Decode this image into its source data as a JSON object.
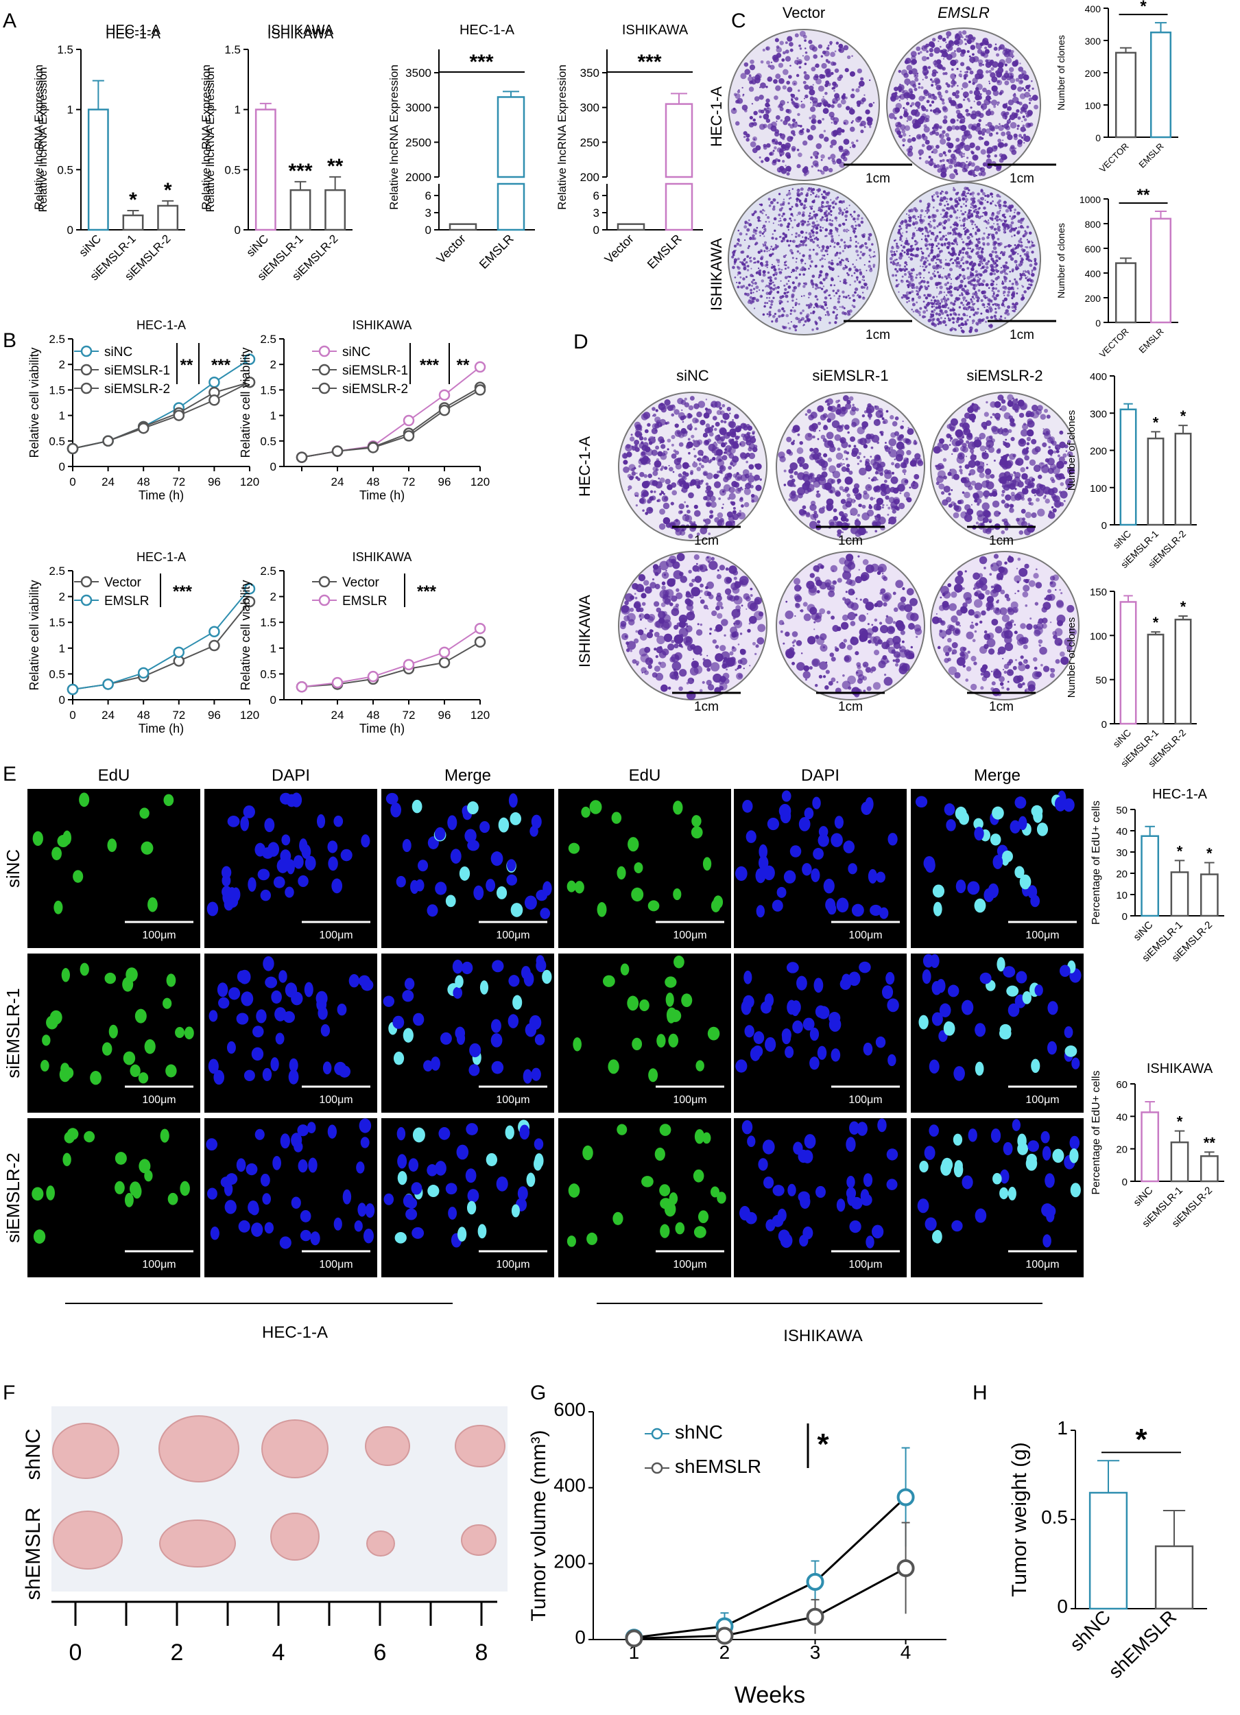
{
  "figure": {
    "panel_labels": [
      "A",
      "B",
      "C",
      "D",
      "E",
      "F",
      "G",
      "H"
    ],
    "colors": {
      "teal": "#2E8EAF",
      "pink": "#C87AC4",
      "gray": "#555555",
      "purple_stain": "#5B2E9E",
      "edu_green": "#2CC22C",
      "dapi_blue": "#1A1AE0"
    }
  },
  "panel_a": {
    "cell_lines": [
      "HEC-1-A",
      "ISHIKAWA",
      "HEC-1-A",
      "ISHIKAWA"
    ],
    "ylabel": "Relative lncRNA Expression",
    "si_categories": [
      "siNC",
      "siEMSLR-1",
      "siEMSLR-2"
    ],
    "ov_categories": [
      "Vector",
      "EMSLR"
    ]
  },
  "panel_b": {
    "titles": [
      "HEC-1-A",
      "ISHIKAWA",
      "HEC-1-A",
      "ISHIKAWA"
    ],
    "ylabel": "Relative cell viability",
    "xlabel": "Time (h)",
    "legend_si": [
      "siNC",
      "siEMSLR-1",
      "siEMSLR-2"
    ],
    "legend_ov": [
      "Vector",
      "EMSLR"
    ],
    "sig": {
      "b1": [
        "**",
        "***"
      ],
      "b2": [
        "***",
        "**"
      ],
      "b3": [
        "***"
      ],
      "b4": [
        "***"
      ]
    }
  },
  "panel_c": {
    "col_labels": [
      "Vector",
      "EMSLR"
    ],
    "row_labels": [
      "HEC-1-A",
      "ISHIKAWA"
    ],
    "scale": "1cm",
    "ylabel": "Number of clones",
    "categories": [
      "VECTOR",
      "EMSLR"
    ]
  },
  "panel_d": {
    "col_labels": [
      "siNC",
      "siEMSLR-1",
      "siEMSLR-2"
    ],
    "row_labels": [
      "HEC-1-A",
      "ISHIKAWA"
    ],
    "scale": "1cm",
    "ylabel": "Number of clones",
    "categories": [
      "siNC",
      "siEMSLR-1",
      "siEMSLR-2"
    ]
  },
  "panel_e": {
    "col_labels": [
      "EdU",
      "DAPI",
      "Merge",
      "EdU",
      "DAPI",
      "Merge"
    ],
    "row_labels": [
      "siNC",
      "siEMSLR-1",
      "siEMSLR-2"
    ],
    "scale": "100μm",
    "group_labels": [
      "HEC-1-A",
      "ISHIKAWA"
    ],
    "chart_titles": [
      "HEC-1-A",
      "ISHIKAWA"
    ],
    "ylabel": "Percentage of EdU+ cells",
    "categories": [
      "siNC",
      "siEMSLR-1",
      "siEMSLR-2"
    ]
  },
  "panel_f": {
    "row_labels": [
      "shNC",
      "shEMSLR"
    ],
    "ruler_ticks": [
      "0",
      "2",
      "4",
      "6",
      "8"
    ]
  },
  "panel_g": {
    "xlabel": "Weeks",
    "ylabel": "Tumor volume (mm³)",
    "legend": [
      "shNC",
      "shEMSLR"
    ],
    "sig": "*"
  },
  "panel_h": {
    "ylabel": "Tumor weight (g)",
    "categories": [
      "shNC",
      "shEMSLR"
    ],
    "sig": "*"
  },
  "chart_data": [
    {
      "id": "A1",
      "type": "bar",
      "title": "HEC-1-A",
      "ylabel": "Relative lncRNA Expression",
      "categories": [
        "siNC",
        "siEMSLR-1",
        "siEMSLR-2"
      ],
      "values": [
        1.0,
        0.12,
        0.2
      ],
      "errors": [
        0.24,
        0.04,
        0.04
      ],
      "ylim": [
        0,
        1.5
      ],
      "yticks": [
        0,
        0.5,
        1.0,
        1.5
      ],
      "sig": [
        "",
        "*",
        "*"
      ]
    },
    {
      "id": "A2",
      "type": "bar",
      "title": "ISHIKAWA",
      "ylabel": "Relative lncRNA Expression",
      "categories": [
        "siNC",
        "siEMSLR-1",
        "siEMSLR-2"
      ],
      "values": [
        1.0,
        0.33,
        0.33
      ],
      "errors": [
        0.05,
        0.07,
        0.11
      ],
      "ylim": [
        0,
        1.5
      ],
      "yticks": [
        0,
        0.5,
        1.0,
        1.5
      ],
      "sig": [
        "",
        "***",
        "**"
      ]
    },
    {
      "id": "A3",
      "type": "bar",
      "title": "HEC-1-A",
      "ylabel": "Relative lncRNA Expression",
      "categories": [
        "Vector",
        "EMSLR"
      ],
      "values": [
        1.0,
        3150
      ],
      "errors": [
        0.2,
        80
      ],
      "yticks": [
        0,
        3,
        6,
        2000,
        2500,
        3000,
        3500
      ],
      "broken_axis": true,
      "sig": "***"
    },
    {
      "id": "A4",
      "type": "bar",
      "title": "ISHIKAWA",
      "ylabel": "Relative lncRNA Expression",
      "categories": [
        "Vector",
        "EMSLR"
      ],
      "values": [
        1.0,
        305
      ],
      "errors": [
        0.2,
        15
      ],
      "yticks": [
        0,
        3,
        6,
        200,
        250,
        300,
        350
      ],
      "broken_axis": true,
      "sig": "***"
    },
    {
      "id": "B1",
      "type": "line",
      "title": "HEC-1-A",
      "xlabel": "Time (h)",
      "ylabel": "Relative cell viability",
      "x": [
        0,
        24,
        48,
        72,
        96,
        120
      ],
      "ylim": [
        0,
        2.5
      ],
      "series": [
        {
          "name": "siNC",
          "values": [
            0.35,
            0.5,
            0.78,
            1.15,
            1.65,
            2.1
          ]
        },
        {
          "name": "siEMSLR-1",
          "values": [
            0.35,
            0.5,
            0.78,
            1.05,
            1.45,
            1.65
          ]
        },
        {
          "name": "siEMSLR-2",
          "values": [
            0.35,
            0.5,
            0.75,
            1.0,
            1.3,
            1.65
          ]
        }
      ]
    },
    {
      "id": "B2",
      "type": "line",
      "title": "ISHIKAWA",
      "xlabel": "Time (h)",
      "ylabel": "Relative cell viability",
      "x": [
        0,
        24,
        48,
        72,
        96,
        120
      ],
      "ylim": [
        0,
        2.5
      ],
      "series": [
        {
          "name": "siNC",
          "values": [
            0.18,
            0.3,
            0.4,
            0.9,
            1.4,
            1.95
          ]
        },
        {
          "name": "siEMSLR-1",
          "values": [
            0.18,
            0.3,
            0.38,
            0.65,
            1.15,
            1.55
          ]
        },
        {
          "name": "siEMSLR-2",
          "values": [
            0.18,
            0.3,
            0.37,
            0.6,
            1.1,
            1.5
          ]
        }
      ]
    },
    {
      "id": "B3",
      "type": "line",
      "title": "HEC-1-A",
      "xlabel": "Time (h)",
      "ylabel": "Relative cell viability",
      "x": [
        0,
        24,
        48,
        72,
        96,
        120
      ],
      "ylim": [
        0,
        2.5
      ],
      "series": [
        {
          "name": "Vector",
          "values": [
            0.2,
            0.3,
            0.45,
            0.75,
            1.05,
            1.9
          ]
        },
        {
          "name": "EMSLR",
          "values": [
            0.2,
            0.3,
            0.52,
            0.92,
            1.32,
            2.15
          ]
        }
      ]
    },
    {
      "id": "B4",
      "type": "line",
      "title": "ISHIKAWA",
      "xlabel": "Time (h)",
      "ylabel": "Relative cell viability",
      "x": [
        0,
        24,
        48,
        72,
        96,
        120
      ],
      "ylim": [
        0,
        2.5
      ],
      "series": [
        {
          "name": "Vector",
          "values": [
            0.25,
            0.3,
            0.4,
            0.6,
            0.72,
            1.12
          ]
        },
        {
          "name": "EMSLR",
          "values": [
            0.25,
            0.33,
            0.45,
            0.68,
            0.92,
            1.38
          ]
        }
      ]
    },
    {
      "id": "C1",
      "type": "bar",
      "ylabel": "Number of clones",
      "categories": [
        "VECTOR",
        "EMSLR"
      ],
      "values": [
        262,
        325
      ],
      "errors": [
        15,
        30
      ],
      "ylim": [
        0,
        400
      ],
      "yticks": [
        0,
        100,
        200,
        300,
        400
      ],
      "sig": "*"
    },
    {
      "id": "C2",
      "type": "bar",
      "ylabel": "Number of clones",
      "categories": [
        "VECTOR",
        "EMSLR"
      ],
      "values": [
        480,
        840
      ],
      "errors": [
        40,
        60
      ],
      "ylim": [
        0,
        1000
      ],
      "yticks": [
        0,
        200,
        400,
        600,
        800,
        1000
      ],
      "sig": "**"
    },
    {
      "id": "D1",
      "type": "bar",
      "ylabel": "Number of clones",
      "categories": [
        "siNC",
        "siEMSLR-1",
        "siEMSLR-2"
      ],
      "values": [
        310,
        232,
        245
      ],
      "errors": [
        15,
        18,
        22
      ],
      "ylim": [
        0,
        400
      ],
      "yticks": [
        0,
        100,
        200,
        300,
        400
      ],
      "sig": [
        "",
        "*",
        "*"
      ]
    },
    {
      "id": "D2",
      "type": "bar",
      "ylabel": "Number of clones",
      "categories": [
        "siNC",
        "siEMSLR-1",
        "siEMSLR-2"
      ],
      "values": [
        138,
        101,
        118
      ],
      "errors": [
        7,
        3,
        4
      ],
      "ylim": [
        0,
        150
      ],
      "yticks": [
        0,
        50,
        100,
        150
      ],
      "sig": [
        "",
        "*",
        "*"
      ]
    },
    {
      "id": "E1",
      "type": "bar",
      "title": "HEC-1-A",
      "ylabel": "Percentage of EdU+ cells",
      "categories": [
        "siNC",
        "siEMSLR-1",
        "siEMSLR-2"
      ],
      "values": [
        37.5,
        20.5,
        19.5
      ],
      "errors": [
        4.5,
        5.5,
        5.5
      ],
      "ylim": [
        0,
        50
      ],
      "yticks": [
        0,
        10,
        20,
        30,
        40,
        50
      ],
      "sig": [
        "",
        "*",
        "*"
      ]
    },
    {
      "id": "E2",
      "type": "bar",
      "title": "ISHIKAWA",
      "ylabel": "Percentage of EdU+ cells",
      "categories": [
        "siNC",
        "siEMSLR-1",
        "siEMSLR-2"
      ],
      "values": [
        42.5,
        24,
        15.5
      ],
      "errors": [
        6.5,
        7,
        2.5
      ],
      "ylim": [
        0,
        60
      ],
      "yticks": [
        0,
        20,
        40,
        60
      ],
      "sig": [
        "",
        "*",
        "**"
      ]
    },
    {
      "id": "G",
      "type": "line",
      "xlabel": "Weeks",
      "ylabel": "Tumor volume (mm³)",
      "x": [
        1,
        2,
        3,
        4
      ],
      "ylim": [
        0,
        600
      ],
      "yticks": [
        0,
        200,
        400,
        600
      ],
      "series": [
        {
          "name": "shNC",
          "values": [
            5,
            35,
            152,
            375
          ],
          "errors": [
            5,
            35,
            55,
            130
          ]
        },
        {
          "name": "shEMSLR",
          "values": [
            3,
            10,
            60,
            188
          ],
          "errors": [
            3,
            10,
            45,
            120
          ]
        }
      ],
      "sig": "*"
    },
    {
      "id": "H",
      "type": "bar",
      "ylabel": "Tumor weight (g)",
      "categories": [
        "shNC",
        "shEMSLR"
      ],
      "values": [
        0.65,
        0.35
      ],
      "errors": [
        0.18,
        0.2
      ],
      "ylim": [
        0,
        1.0
      ],
      "yticks": [
        0,
        0.5,
        1.0
      ],
      "sig": "*"
    }
  ]
}
